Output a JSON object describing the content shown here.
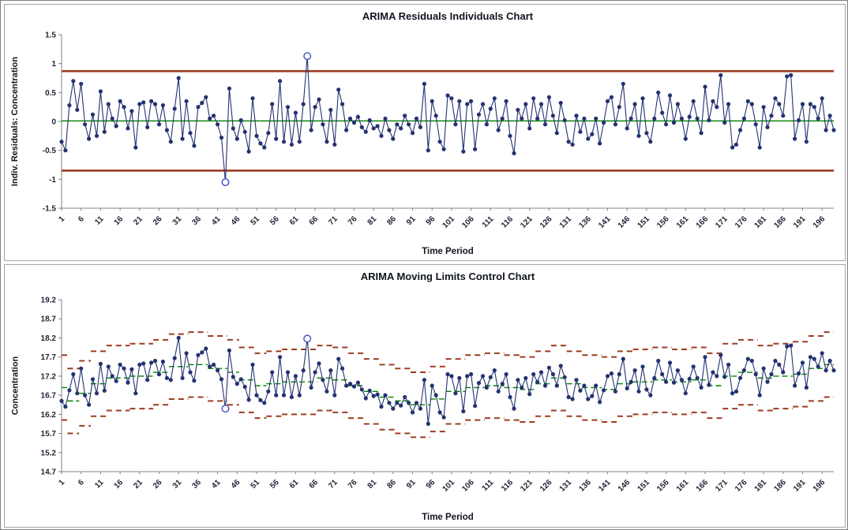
{
  "chart_data": [
    {
      "type": "line",
      "title": "ARIMA Residuals Individuals Chart",
      "xlabel": "Time Period",
      "ylabel": "Indiv. Residuals: Concentration",
      "ylim": [
        -1.5,
        1.5
      ],
      "yticks": [
        "1.5",
        "1",
        "0.5",
        "0",
        "-0.5",
        "-1",
        "-1.5"
      ],
      "xticks": [
        1,
        6,
        11,
        16,
        21,
        26,
        31,
        36,
        41,
        46,
        51,
        56,
        61,
        66,
        71,
        76,
        81,
        86,
        91,
        96,
        101,
        106,
        111,
        116,
        121,
        126,
        131,
        136,
        141,
        146,
        151,
        156,
        161,
        166,
        171,
        176,
        181,
        186,
        191,
        196
      ],
      "grid": false,
      "legend": "none",
      "series": [
        {
          "name": "Individual Residuals",
          "color": "#243271",
          "values": [
            -0.35,
            -0.5,
            0.28,
            0.7,
            0.2,
            0.65,
            -0.05,
            -0.3,
            0.12,
            -0.25,
            0.52,
            -0.18,
            0.3,
            0.05,
            -0.08,
            0.35,
            0.25,
            -0.12,
            0.18,
            -0.45,
            0.3,
            0.33,
            -0.1,
            0.35,
            0.3,
            -0.05,
            0.28,
            -0.15,
            -0.35,
            0.22,
            0.75,
            -0.3,
            0.35,
            -0.2,
            -0.42,
            0.25,
            0.32,
            0.42,
            0.05,
            0.1,
            -0.05,
            -0.28,
            -1.05,
            0.57,
            -0.12,
            -0.3,
            0.02,
            -0.18,
            -0.52,
            0.4,
            -0.25,
            -0.38,
            -0.45,
            -0.2,
            0.3,
            -0.3,
            0.7,
            -0.35,
            0.25,
            -0.4,
            0.15,
            -0.35,
            0.3,
            1.13,
            -0.15,
            0.25,
            0.38,
            -0.05,
            -0.35,
            0.2,
            -0.4,
            0.55,
            0.3,
            -0.15,
            0.05,
            -0.02,
            0.08,
            -0.1,
            -0.18,
            0.02,
            -0.12,
            -0.08,
            -0.25,
            0.05,
            -0.15,
            -0.3,
            -0.05,
            -0.12,
            0.1,
            -0.05,
            -0.2,
            0.05,
            -0.1,
            0.65,
            -0.5,
            0.35,
            0.1,
            -0.35,
            -0.48,
            0.45,
            0.4,
            -0.05,
            0.35,
            -0.52,
            0.3,
            0.35,
            -0.48,
            0.12,
            0.3,
            -0.05,
            0.22,
            0.4,
            -0.15,
            0.05,
            0.35,
            -0.25,
            -0.55,
            0.2,
            0.05,
            0.3,
            -0.12,
            0.4,
            0.05,
            0.3,
            -0.05,
            0.42,
            0.1,
            -0.2,
            0.32,
            0.02,
            -0.35,
            -0.4,
            0.1,
            -0.18,
            0.05,
            -0.3,
            -0.22,
            0.05,
            -0.38,
            -0.02,
            0.35,
            0.42,
            -0.05,
            0.25,
            0.65,
            -0.12,
            0.05,
            0.3,
            -0.25,
            0.4,
            -0.2,
            -0.35,
            0.05,
            0.5,
            0.15,
            -0.05,
            0.45,
            -0.02,
            0.3,
            0.05,
            -0.3,
            0.08,
            0.35,
            0.05,
            -0.2,
            0.6,
            0.02,
            0.35,
            0.25,
            0.8,
            -0.02,
            0.3,
            -0.45,
            -0.4,
            -0.15,
            0.05,
            0.35,
            0.3,
            -0.05,
            -0.45,
            0.25,
            -0.1,
            0.1,
            0.4,
            0.3,
            0.1,
            0.78,
            0.8,
            -0.3,
            0.02,
            0.3,
            -0.35,
            0.3,
            0.25,
            0.05,
            0.4,
            -0.15,
            0.1,
            -0.15
          ]
        }
      ],
      "center_line": {
        "value": 0.01,
        "color": "#008000"
      },
      "limits": {
        "ucl": 0.87,
        "lcl": -0.85,
        "color": "#9C3D20"
      },
      "outlier_periods": [
        43,
        64
      ],
      "outlier_color": "#3B4CC8"
    },
    {
      "type": "line",
      "title": "ARIMA Moving Limits Control Chart",
      "xlabel": "Time Period",
      "ylabel": "Concentration",
      "ylim": [
        14.7,
        19.2
      ],
      "yticks": [
        "19.2",
        "18.7",
        "18.2",
        "17.7",
        "17.2",
        "16.7",
        "16.2",
        "15.7",
        "15.2",
        "14.7"
      ],
      "xticks": [
        1,
        6,
        11,
        16,
        21,
        26,
        31,
        36,
        41,
        46,
        51,
        56,
        61,
        66,
        71,
        76,
        81,
        86,
        91,
        96,
        101,
        106,
        111,
        116,
        121,
        126,
        131,
        136,
        141,
        146,
        151,
        156,
        161,
        166,
        171,
        176,
        181,
        186,
        191,
        196
      ],
      "grid": false,
      "legend": "none",
      "series": [
        {
          "name": "Concentration",
          "color": "#243271",
          "values": [
            16.55,
            16.4,
            16.83,
            17.25,
            16.75,
            17.4,
            16.7,
            16.45,
            17.12,
            16.75,
            17.52,
            16.82,
            17.45,
            17.2,
            17.07,
            17.5,
            17.4,
            17.03,
            17.38,
            16.75,
            17.5,
            17.53,
            17.1,
            17.55,
            17.6,
            17.25,
            17.58,
            17.15,
            17.1,
            17.67,
            18.2,
            17.15,
            17.8,
            17.3,
            17.08,
            17.75,
            17.82,
            17.92,
            17.45,
            17.5,
            17.35,
            17.12,
            16.35,
            17.87,
            17.18,
            17.0,
            17.12,
            16.92,
            16.58,
            17.5,
            16.7,
            16.57,
            16.5,
            16.8,
            17.3,
            16.7,
            17.7,
            16.7,
            17.3,
            16.65,
            17.2,
            16.7,
            17.35,
            18.18,
            16.9,
            17.3,
            17.53,
            17.1,
            16.8,
            17.35,
            16.7,
            17.65,
            17.4,
            16.95,
            17.0,
            16.93,
            17.03,
            16.85,
            16.62,
            16.82,
            16.68,
            16.72,
            16.4,
            16.7,
            16.5,
            16.35,
            16.5,
            16.43,
            16.65,
            16.5,
            16.25,
            16.5,
            16.35,
            17.1,
            15.95,
            16.95,
            16.7,
            16.25,
            16.12,
            17.25,
            17.2,
            16.75,
            17.15,
            16.28,
            17.2,
            17.25,
            16.42,
            17.02,
            17.2,
            16.9,
            17.17,
            17.35,
            16.8,
            17.0,
            17.25,
            16.65,
            16.35,
            17.1,
            16.9,
            17.15,
            16.73,
            17.25,
            17.05,
            17.3,
            16.95,
            17.42,
            17.25,
            16.95,
            17.47,
            17.17,
            16.65,
            16.6,
            17.1,
            16.82,
            16.95,
            16.6,
            16.68,
            16.95,
            16.52,
            16.83,
            17.2,
            17.27,
            16.8,
            17.25,
            17.65,
            16.88,
            17.05,
            17.35,
            16.8,
            17.45,
            16.85,
            16.7,
            17.15,
            17.6,
            17.25,
            17.05,
            17.55,
            17.03,
            17.35,
            17.1,
            16.75,
            17.13,
            17.45,
            17.15,
            16.9,
            17.7,
            16.97,
            17.3,
            17.2,
            17.75,
            17.18,
            17.5,
            16.75,
            16.8,
            17.15,
            17.35,
            17.65,
            17.6,
            17.25,
            16.7,
            17.4,
            17.05,
            17.25,
            17.6,
            17.5,
            17.3,
            17.98,
            18.0,
            16.95,
            17.27,
            17.55,
            16.9,
            17.7,
            17.65,
            17.45,
            17.8,
            17.35,
            17.6,
            17.35
          ]
        }
      ],
      "moving_center": {
        "color": "#008000",
        "values": [
          16.9,
          16.9,
          16.55,
          16.55,
          16.55,
          16.75,
          16.75,
          16.75,
          17.0,
          17.0,
          17.0,
          17.0,
          17.15,
          17.15,
          17.15,
          17.15,
          17.15,
          17.15,
          17.2,
          17.2,
          17.2,
          17.2,
          17.2,
          17.2,
          17.3,
          17.3,
          17.3,
          17.3,
          17.45,
          17.45,
          17.45,
          17.45,
          17.45,
          17.5,
          17.5,
          17.5,
          17.5,
          17.5,
          17.4,
          17.4,
          17.4,
          17.4,
          17.4,
          17.3,
          17.3,
          17.3,
          17.1,
          17.1,
          17.1,
          17.1,
          16.95,
          16.95,
          16.95,
          17.0,
          17.0,
          17.0,
          17.0,
          17.05,
          17.05,
          17.05,
          17.05,
          17.05,
          17.05,
          17.05,
          17.05,
          17.05,
          17.15,
          17.15,
          17.15,
          17.15,
          17.1,
          17.1,
          17.1,
          17.1,
          16.95,
          16.95,
          16.95,
          16.95,
          16.8,
          16.8,
          16.8,
          16.8,
          16.65,
          16.65,
          16.65,
          16.65,
          16.55,
          16.55,
          16.55,
          16.55,
          16.45,
          16.45,
          16.45,
          16.45,
          16.45,
          16.6,
          16.6,
          16.6,
          16.6,
          16.8,
          16.8,
          16.8,
          16.8,
          16.8,
          16.9,
          16.9,
          16.9,
          16.9,
          16.9,
          16.95,
          16.95,
          16.95,
          16.95,
          16.95,
          16.9,
          16.9,
          16.9,
          16.9,
          16.85,
          16.85,
          16.85,
          16.85,
          17.0,
          17.0,
          17.0,
          17.0,
          17.15,
          17.15,
          17.15,
          17.15,
          17.0,
          17.0,
          17.0,
          17.0,
          16.9,
          16.9,
          16.9,
          16.9,
          16.9,
          16.85,
          16.85,
          16.85,
          16.85,
          17.0,
          17.0,
          17.0,
          17.0,
          17.05,
          17.05,
          17.05,
          17.05,
          17.05,
          17.1,
          17.1,
          17.1,
          17.1,
          17.1,
          17.05,
          17.05,
          17.05,
          17.05,
          17.05,
          17.1,
          17.1,
          17.1,
          17.1,
          16.95,
          16.95,
          16.95,
          16.95,
          17.2,
          17.2,
          17.2,
          17.2,
          17.3,
          17.3,
          17.3,
          17.3,
          17.3,
          17.15,
          17.15,
          17.15,
          17.15,
          17.2,
          17.2,
          17.2,
          17.2,
          17.2,
          17.25,
          17.25,
          17.25,
          17.25,
          17.4,
          17.4,
          17.4,
          17.4,
          17.5,
          17.5,
          17.5
        ]
      },
      "moving_limits": {
        "offset": 0.85,
        "color": "#9C3D20"
      },
      "outlier_periods": [
        43,
        64
      ],
      "outlier_color": "#3B4CC8"
    }
  ]
}
